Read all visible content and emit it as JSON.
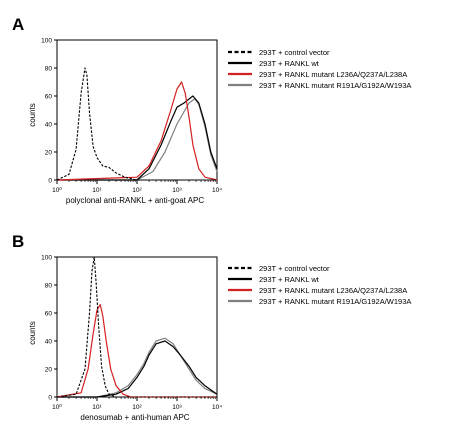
{
  "chart_data": [
    {
      "type": "line",
      "panel_label": "A",
      "xlabel": "polyclonal anti-RANKL + anti-goat APC",
      "ylabel": "counts",
      "x_scale": "log",
      "xlim": [
        1,
        10000
      ],
      "ylim": [
        0,
        100
      ],
      "x_ticks": [
        "10⁰",
        "10¹",
        "10²",
        "10³",
        "10⁴"
      ],
      "y_ticks": [
        "0",
        "20",
        "40",
        "60",
        "80",
        "100"
      ],
      "grid": false,
      "legend_position": "right",
      "series": [
        {
          "name": "293T + control vector",
          "color": "#000000",
          "style": "dashed",
          "x": [
            1,
            2,
            3,
            4,
            5,
            5.6,
            6.5,
            8,
            10,
            14,
            20,
            30,
            50,
            100,
            1000,
            10000
          ],
          "y": [
            0,
            4,
            22,
            62,
            80,
            75,
            48,
            24,
            16,
            10,
            9,
            5,
            2,
            0,
            0,
            0
          ]
        },
        {
          "name": "293T + RANKL wt",
          "color": "#000000",
          "style": "solid",
          "x": [
            1,
            100,
            200,
            400,
            700,
            1000,
            1500,
            2500,
            3500,
            5000,
            7000,
            10000
          ],
          "y": [
            0,
            0,
            8,
            25,
            42,
            52,
            55,
            60,
            55,
            40,
            20,
            8
          ]
        },
        {
          "name": "293T + RANKL mutant L236A/Q237A/L238A",
          "color": "#d42020",
          "style": "solid",
          "x": [
            1,
            100,
            200,
            400,
            700,
            1000,
            1300,
            1600,
            2000,
            2500,
            3500,
            5000,
            10000
          ],
          "y": [
            0,
            2,
            10,
            28,
            50,
            65,
            70,
            62,
            45,
            25,
            8,
            2,
            0
          ]
        },
        {
          "name": "293T + RANKL mutant R191A/G192A/W193A",
          "color": "#808080",
          "style": "solid",
          "x": [
            1,
            100,
            250,
            500,
            1000,
            2000,
            2800,
            3500,
            5000,
            7000,
            10000
          ],
          "y": [
            0,
            0,
            6,
            20,
            40,
            55,
            58,
            54,
            38,
            18,
            6
          ]
        }
      ]
    },
    {
      "type": "line",
      "panel_label": "B",
      "xlabel": "denosumab + anti-human APC",
      "ylabel": "counts",
      "x_scale": "log",
      "xlim": [
        1,
        10000
      ],
      "ylim": [
        0,
        100
      ],
      "x_ticks": [
        "10⁰",
        "10¹",
        "10²",
        "10³",
        "10⁴"
      ],
      "y_ticks": [
        "0",
        "20",
        "40",
        "60",
        "80",
        "100"
      ],
      "grid": false,
      "legend_position": "right",
      "series": [
        {
          "name": "293T + control vector",
          "color": "#000000",
          "style": "dashed",
          "x": [
            1,
            3,
            5,
            6.5,
            7.5,
            8.5,
            9.5,
            11,
            13,
            16,
            20,
            30,
            10000
          ],
          "y": [
            0,
            2,
            20,
            60,
            90,
            100,
            82,
            50,
            22,
            8,
            2,
            0,
            0
          ]
        },
        {
          "name": "293T + RANKL wt",
          "color": "#000000",
          "style": "solid",
          "x": [
            1,
            10,
            30,
            60,
            100,
            150,
            200,
            300,
            500,
            800,
            1200,
            2000,
            3000,
            5000,
            10000
          ],
          "y": [
            0,
            0,
            2,
            6,
            14,
            22,
            30,
            38,
            40,
            36,
            30,
            22,
            14,
            8,
            2
          ]
        },
        {
          "name": "293T + RANKL mutant L236A/Q237A/L238A",
          "color": "#d42020",
          "style": "solid",
          "x": [
            1,
            4,
            6,
            8,
            10,
            12,
            14,
            17,
            22,
            30,
            45,
            70,
            10000
          ],
          "y": [
            0,
            3,
            20,
            45,
            62,
            66,
            58,
            40,
            20,
            8,
            2,
            0,
            0
          ]
        },
        {
          "name": "293T + RANKL mutant R191A/G192A/W193A",
          "color": "#808080",
          "style": "solid",
          "x": [
            1,
            10,
            30,
            60,
            100,
            150,
            200,
            300,
            500,
            800,
            1200,
            2000,
            3000,
            5000,
            10000
          ],
          "y": [
            0,
            0,
            3,
            8,
            16,
            24,
            32,
            40,
            42,
            38,
            30,
            20,
            12,
            6,
            2
          ]
        }
      ]
    }
  ]
}
